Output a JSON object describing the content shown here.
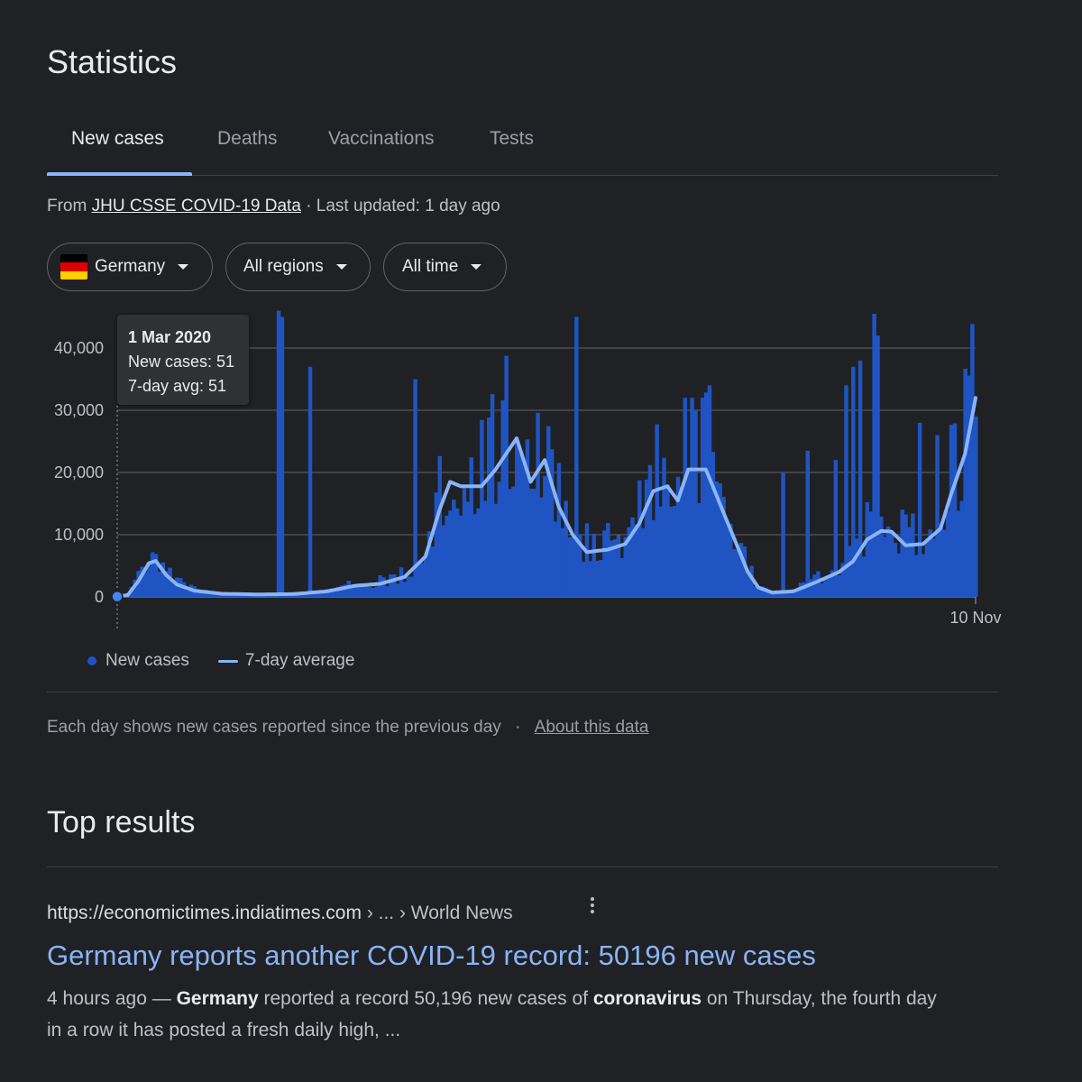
{
  "stats": {
    "title": "Statistics",
    "tabs": [
      "New cases",
      "Deaths",
      "Vaccinations",
      "Tests"
    ],
    "source_prefix": "From",
    "source_link": "JHU CSSE COVID-19 Data",
    "source_suffix": "· Last updated: 1 day ago",
    "filters": {
      "country": "Germany",
      "region": "All regions",
      "time": "All time"
    },
    "tooltip": {
      "date": "1 Mar 2020",
      "new_cases": "New cases: 51",
      "avg": "7-day avg: 51"
    },
    "legend": {
      "bars": "New cases",
      "line": "7-day average"
    },
    "note": "Each day shows new cases reported since the previous day",
    "note_sep": "·",
    "note_link": "About this data",
    "colors": {
      "bars": "#1f54c2",
      "line": "#8ab4f8",
      "grid": "#5f6368",
      "flag": [
        "#000000",
        "#dd0000",
        "#ffce00"
      ]
    }
  },
  "chart_data": {
    "type": "bar",
    "title": "",
    "series": [
      {
        "name": "New cases",
        "kind": "bar"
      },
      {
        "name": "7-day average",
        "kind": "line"
      }
    ],
    "x_start_label": "1 Mar 2020",
    "x_end_label": "10 Nov",
    "yticks": [
      0,
      10000,
      20000,
      30000,
      40000
    ],
    "ytick_labels": [
      "0",
      "10,000",
      "20,000",
      "30,000",
      "40,000"
    ],
    "ylim": [
      0,
      45000
    ],
    "avg_points": [
      [
        0,
        51
      ],
      [
        3,
        300
      ],
      [
        6,
        2500
      ],
      [
        9,
        5400
      ],
      [
        11,
        5800
      ],
      [
        14,
        3500
      ],
      [
        17,
        2000
      ],
      [
        22,
        1000
      ],
      [
        30,
        500
      ],
      [
        40,
        400
      ],
      [
        50,
        450
      ],
      [
        60,
        900
      ],
      [
        68,
        1800
      ],
      [
        75,
        2100
      ],
      [
        82,
        3200
      ],
      [
        88,
        6500
      ],
      [
        92,
        14000
      ],
      [
        95,
        18500
      ],
      [
        98,
        17800
      ],
      [
        104,
        17800
      ],
      [
        108,
        20500
      ],
      [
        114,
        25500
      ],
      [
        118,
        18500
      ],
      [
        122,
        22000
      ],
      [
        126,
        14500
      ],
      [
        130,
        10000
      ],
      [
        134,
        7200
      ],
      [
        140,
        7600
      ],
      [
        145,
        8500
      ],
      [
        149,
        11800
      ],
      [
        153,
        17000
      ],
      [
        157,
        17800
      ],
      [
        160,
        15500
      ],
      [
        163,
        20500
      ],
      [
        168,
        20500
      ],
      [
        172,
        15000
      ],
      [
        176,
        9500
      ],
      [
        180,
        4000
      ],
      [
        183,
        1500
      ],
      [
        187,
        700
      ],
      [
        193,
        900
      ],
      [
        200,
        2500
      ],
      [
        206,
        4000
      ],
      [
        210,
        5700
      ],
      [
        214,
        9200
      ],
      [
        218,
        10600
      ],
      [
        221,
        10500
      ],
      [
        225,
        8300
      ],
      [
        230,
        8500
      ],
      [
        235,
        11000
      ],
      [
        238,
        16500
      ],
      [
        242,
        23000
      ],
      [
        245,
        32000
      ]
    ],
    "spikes": [
      [
        46,
        46000
      ],
      [
        47,
        45000
      ],
      [
        55,
        37000
      ],
      [
        85,
        35000
      ],
      [
        131,
        45000
      ],
      [
        162,
        32000
      ],
      [
        164,
        32000
      ],
      [
        165,
        30000
      ],
      [
        167,
        32000
      ],
      [
        169,
        34000
      ],
      [
        190,
        20000
      ],
      [
        197,
        23500
      ],
      [
        205,
        22000
      ],
      [
        208,
        34000
      ],
      [
        210,
        37000
      ],
      [
        212,
        38000
      ],
      [
        216,
        45500
      ],
      [
        217,
        42000
      ],
      [
        229,
        28000
      ],
      [
        234,
        26000
      ]
    ],
    "marker": {
      "x": 0,
      "y": 51
    }
  },
  "result": {
    "heading": "Top results",
    "url": "https://economictimes.indiatimes.com",
    "crumb": "› ... › World News",
    "title": "Germany reports another COVID-19 record: 50196 new cases",
    "snippet_parts": [
      "4 hours ago — ",
      "Germany",
      " reported a record 50,196 new cases of ",
      "coronavirus",
      " on Thursday, the fourth day in a row it has posted a fresh daily high, ..."
    ]
  }
}
